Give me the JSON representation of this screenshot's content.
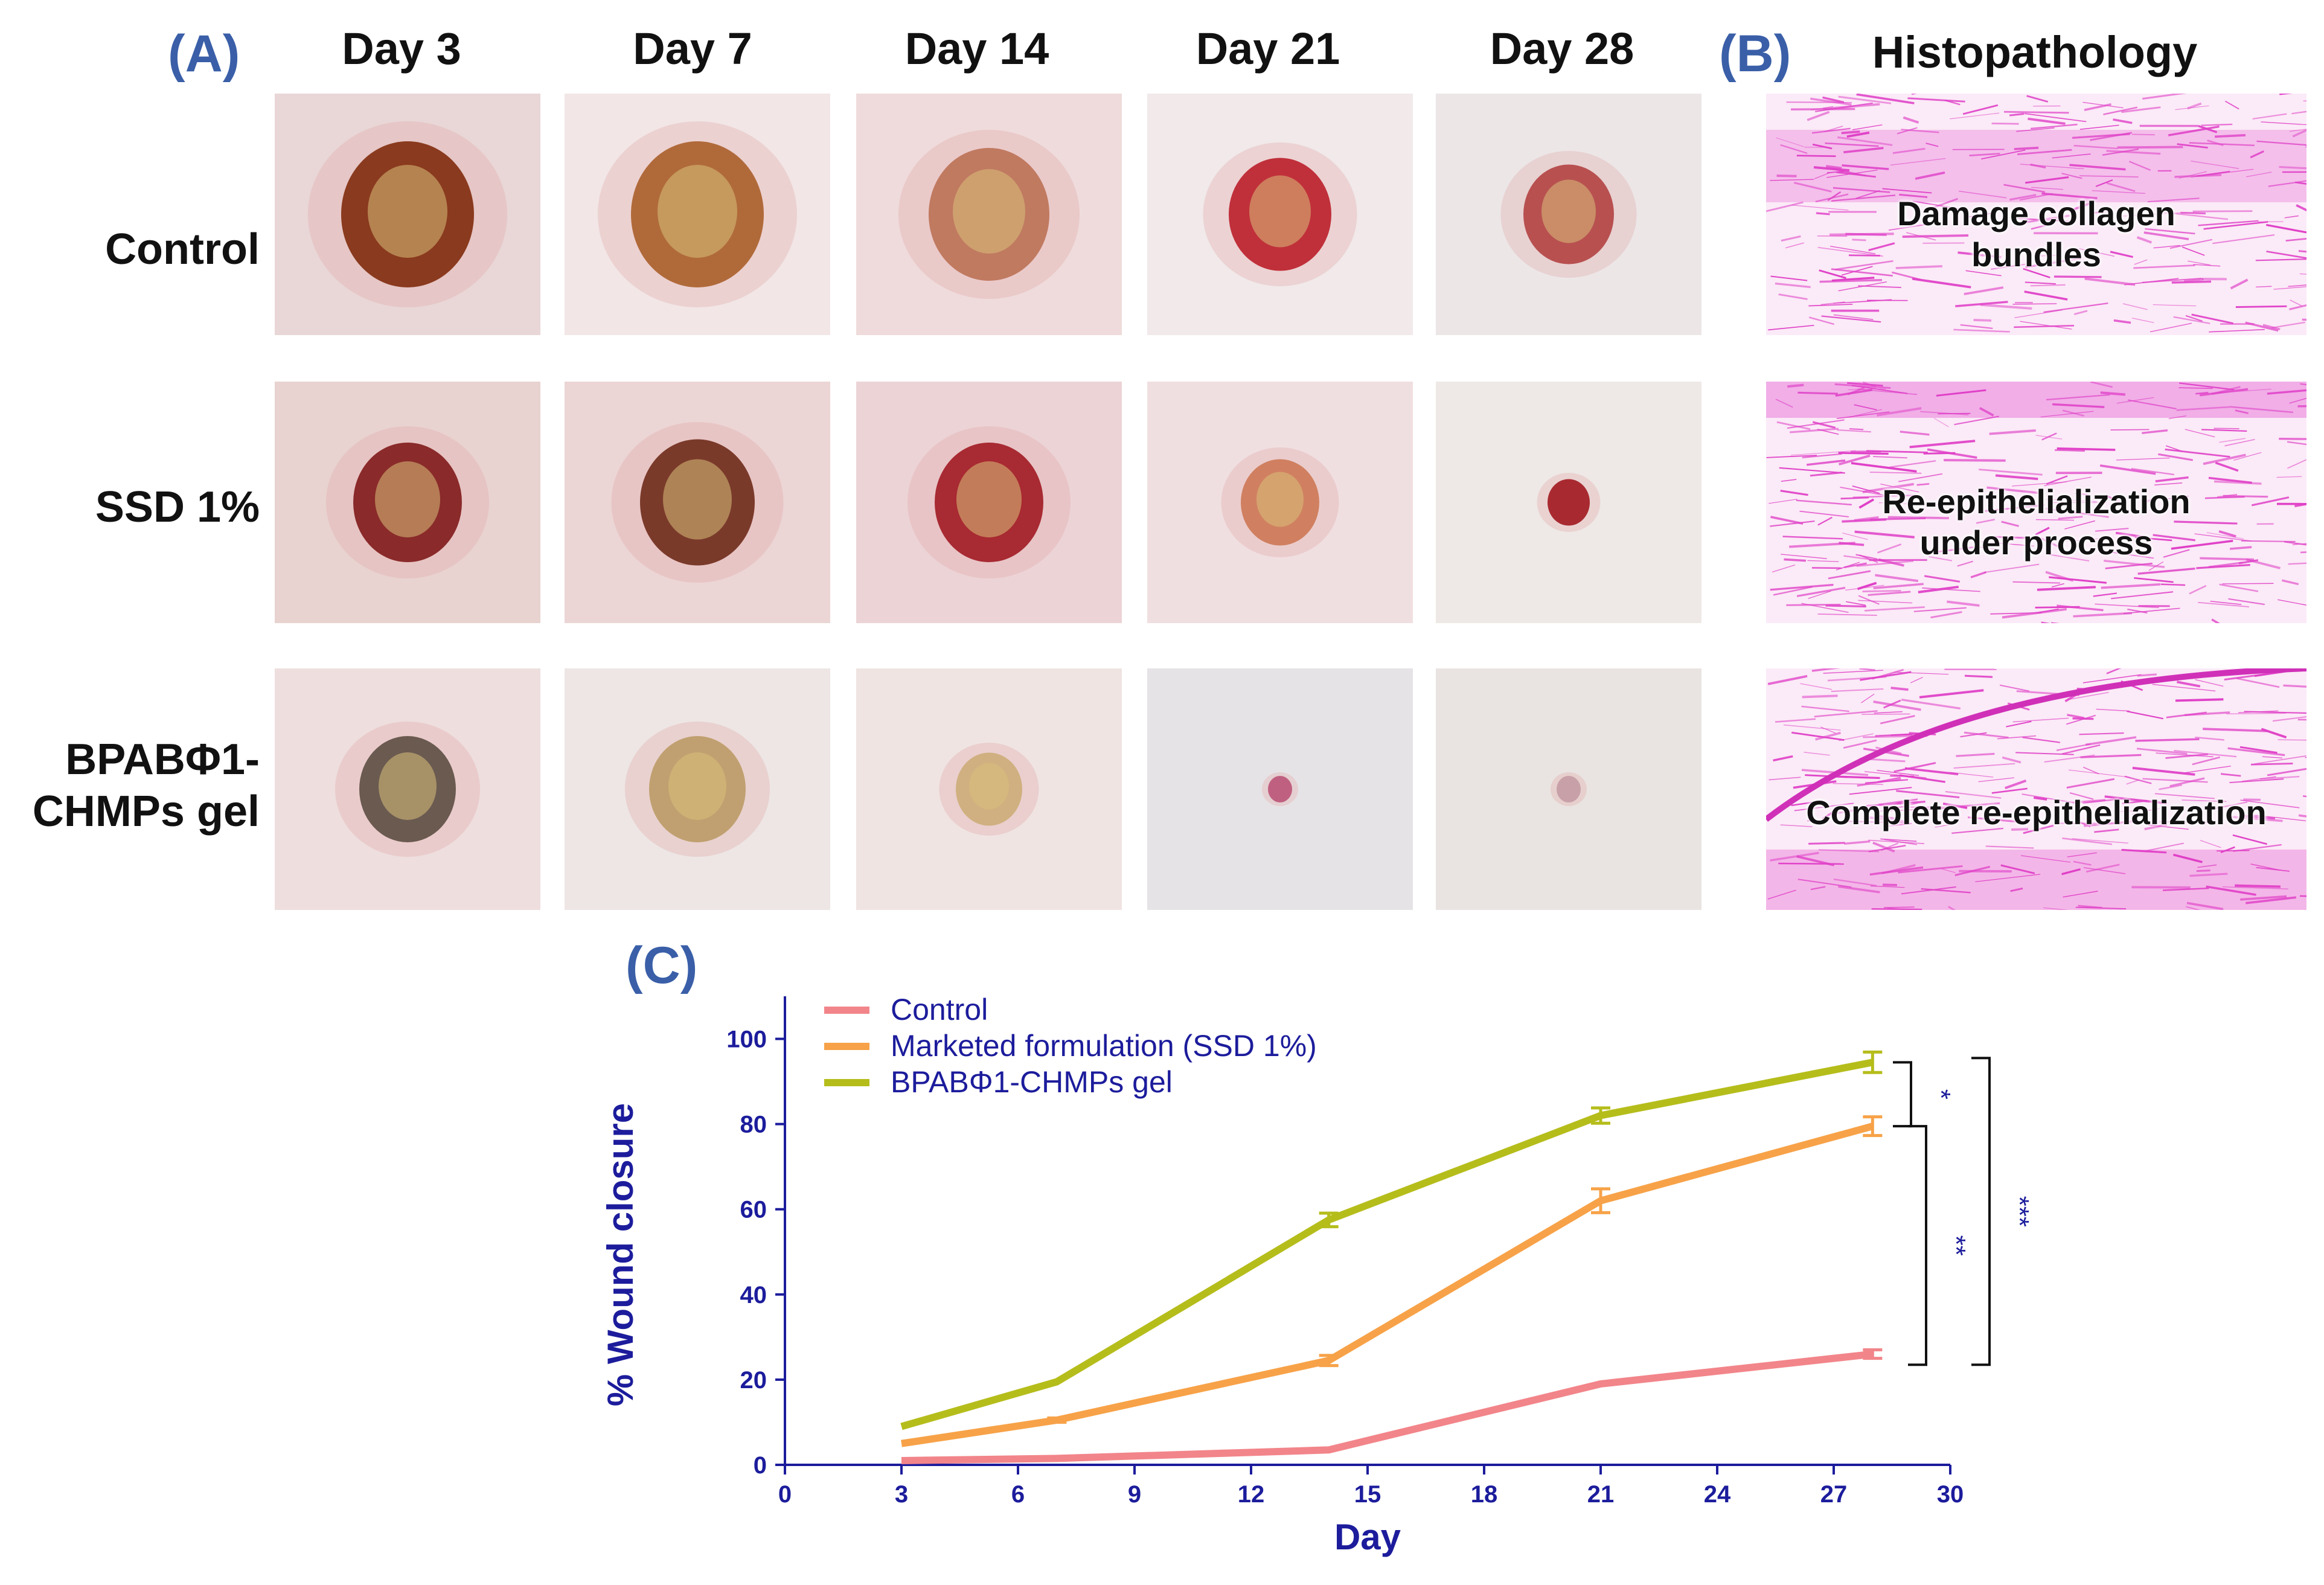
{
  "panels": {
    "a": "(A)",
    "b": "(B)",
    "c": "(C)"
  },
  "columns": [
    "Day 3",
    "Day 7",
    "Day 14",
    "Day 21",
    "Day 28"
  ],
  "rows": [
    {
      "label": "Control"
    },
    {
      "label": "SSD 1%"
    },
    {
      "label": "BPABΦ1-\nCHMPs gel"
    }
  ],
  "histopathology": {
    "title": "Histopathology",
    "labels": [
      "Damage collagen\nbundles",
      "Re-epithelialization\nunder process",
      "Complete re-epithelialization"
    ]
  },
  "colors": {
    "panel_letter": "#3a5fa8",
    "axis": "#1c1c9c",
    "control": "#f2858a",
    "ssd": "#f7a248",
    "bpab": "#b5bd1b",
    "stain": "#e040c8"
  },
  "chart_data": {
    "type": "line",
    "xlabel": "Day",
    "ylabel": "% Wound closure",
    "xlim": [
      0,
      30
    ],
    "ylim": [
      0,
      110
    ],
    "xticks": [
      0,
      3,
      6,
      9,
      12,
      15,
      18,
      21,
      24,
      27,
      30
    ],
    "yticks": [
      0,
      20,
      40,
      60,
      80,
      100
    ],
    "series": [
      {
        "name": "Control",
        "color": "#f2858a",
        "x": [
          3,
          7,
          14,
          21,
          28
        ],
        "values": [
          1,
          1.5,
          3.5,
          19,
          26
        ],
        "err": [
          0,
          0,
          0,
          0,
          1
        ]
      },
      {
        "name": "Marketed formulation (SSD 1%)",
        "color": "#f7a248",
        "x": [
          3,
          7,
          14,
          21,
          28
        ],
        "values": [
          5,
          10.5,
          24.5,
          62,
          79.5
        ],
        "err": [
          0,
          0.5,
          1.2,
          2.8,
          2.2
        ]
      },
      {
        "name": "BPABΦ1-CHMPs gel",
        "color": "#b5bd1b",
        "x": [
          3,
          7,
          14,
          21,
          28
        ],
        "values": [
          9,
          19.5,
          57.5,
          82,
          94.5
        ],
        "err": [
          0,
          0,
          1.6,
          1.8,
          2.4
        ]
      }
    ],
    "significance": [
      {
        "label": "*",
        "from": 94.5,
        "to": 79.5
      },
      {
        "label": "**",
        "from": 79.5,
        "to": 23.5
      },
      {
        "label": "***",
        "from": 95.5,
        "to": 23.5
      }
    ],
    "legend_position": "top-left"
  }
}
